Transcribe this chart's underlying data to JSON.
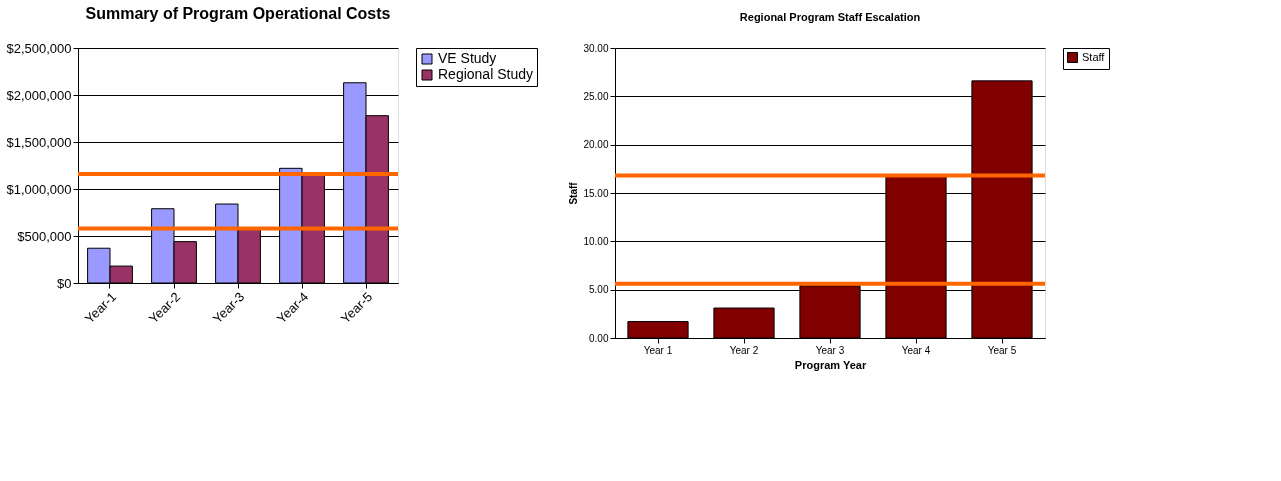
{
  "chart_data": [
    {
      "type": "bar",
      "title": "Summary of Program Operational Costs",
      "categories": [
        "Year-1",
        "Year-2",
        "Year-3",
        "Year-4",
        "Year-5"
      ],
      "series": [
        {
          "name": "VE Study",
          "color": "#9999ff",
          "values": [
            370000,
            790000,
            840000,
            1220000,
            2130000
          ]
        },
        {
          "name": "Regional Study",
          "color": "#993366",
          "values": [
            180000,
            440000,
            580000,
            1160000,
            1780000
          ]
        }
      ],
      "ylim": [
        0,
        2500000
      ],
      "yticks": [
        {
          "value": 0,
          "label": "$0"
        },
        {
          "value": 500000,
          "label": "$500,000"
        },
        {
          "value": 1000000,
          "label": "$1,000,000"
        },
        {
          "value": 1500000,
          "label": "$1,500,000"
        },
        {
          "value": 2000000,
          "label": "$2,000,000"
        },
        {
          "value": 2500000,
          "label": "$2,500,000"
        }
      ],
      "grid": "y",
      "legend": "right",
      "ref_lines": [
        {
          "axis": "y",
          "value": 1160000,
          "color": "#ff6600"
        },
        {
          "axis": "y",
          "value": 580000,
          "color": "#ff6600"
        }
      ]
    },
    {
      "type": "bar",
      "title": "Regional Program Staff Escalation",
      "xlabel": "Program Year",
      "ylabel": "Staff",
      "categories": [
        "Year 1",
        "Year 2",
        "Year 3",
        "Year 4",
        "Year 5"
      ],
      "series": [
        {
          "name": "Staff",
          "color": "#800000",
          "values": [
            1.7,
            3.1,
            5.4,
            16.7,
            26.6
          ]
        }
      ],
      "ylim": [
        0,
        30
      ],
      "yticks": [
        {
          "value": 0,
          "label": "0.00"
        },
        {
          "value": 5,
          "label": "5.00"
        },
        {
          "value": 10,
          "label": "10.00"
        },
        {
          "value": 15,
          "label": "15.00"
        },
        {
          "value": 20,
          "label": "20.00"
        },
        {
          "value": 25,
          "label": "25.00"
        },
        {
          "value": 30,
          "label": "30.00"
        }
      ],
      "grid": "y",
      "legend": "right",
      "ref_lines": [
        {
          "axis": "y",
          "value": 16.8,
          "color": "#ff6600"
        },
        {
          "axis": "y",
          "value": 5.6,
          "color": "#ff6600"
        }
      ]
    }
  ]
}
